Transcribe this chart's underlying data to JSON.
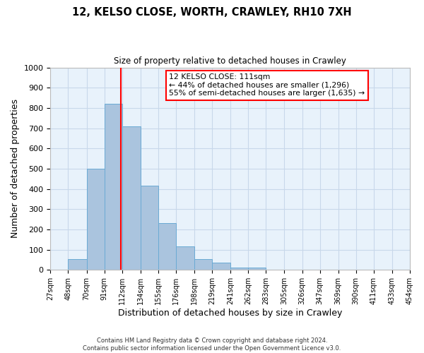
{
  "title": "12, KELSO CLOSE, WORTH, CRAWLEY, RH10 7XH",
  "subtitle": "Size of property relative to detached houses in Crawley",
  "xlabel": "Distribution of detached houses by size in Crawley",
  "ylabel": "Number of detached properties",
  "footer_line1": "Contains HM Land Registry data © Crown copyright and database right 2024.",
  "footer_line2": "Contains public sector information licensed under the Open Government Licence v3.0.",
  "bin_edges": [
    27,
    48,
    70,
    91,
    112,
    134,
    155,
    176,
    198,
    219,
    241,
    262,
    283,
    305,
    326,
    347,
    369,
    390,
    411,
    433,
    454
  ],
  "bin_counts": [
    0,
    55,
    500,
    820,
    710,
    415,
    230,
    118,
    55,
    35,
    10,
    10,
    0,
    0,
    0,
    0,
    0,
    0,
    0,
    0
  ],
  "bar_facecolor": "#aac4de",
  "bar_edgecolor": "#6aaad4",
  "property_line_x": 111,
  "property_line_color": "red",
  "annotation_title": "12 KELSO CLOSE: 111sqm",
  "annotation_line1": "← 44% of detached houses are smaller (1,296)",
  "annotation_line2": "55% of semi-detached houses are larger (1,635) →",
  "annotation_box_edgecolor": "red",
  "annotation_box_facecolor": "white",
  "ylim": [
    0,
    1000
  ],
  "tick_labels": [
    "27sqm",
    "48sqm",
    "70sqm",
    "91sqm",
    "112sqm",
    "134sqm",
    "155sqm",
    "176sqm",
    "198sqm",
    "219sqm",
    "241sqm",
    "262sqm",
    "283sqm",
    "305sqm",
    "326sqm",
    "347sqm",
    "369sqm",
    "390sqm",
    "411sqm",
    "433sqm",
    "454sqm"
  ],
  "grid_color": "#c8d8ea",
  "background_color": "#e8f2fb"
}
